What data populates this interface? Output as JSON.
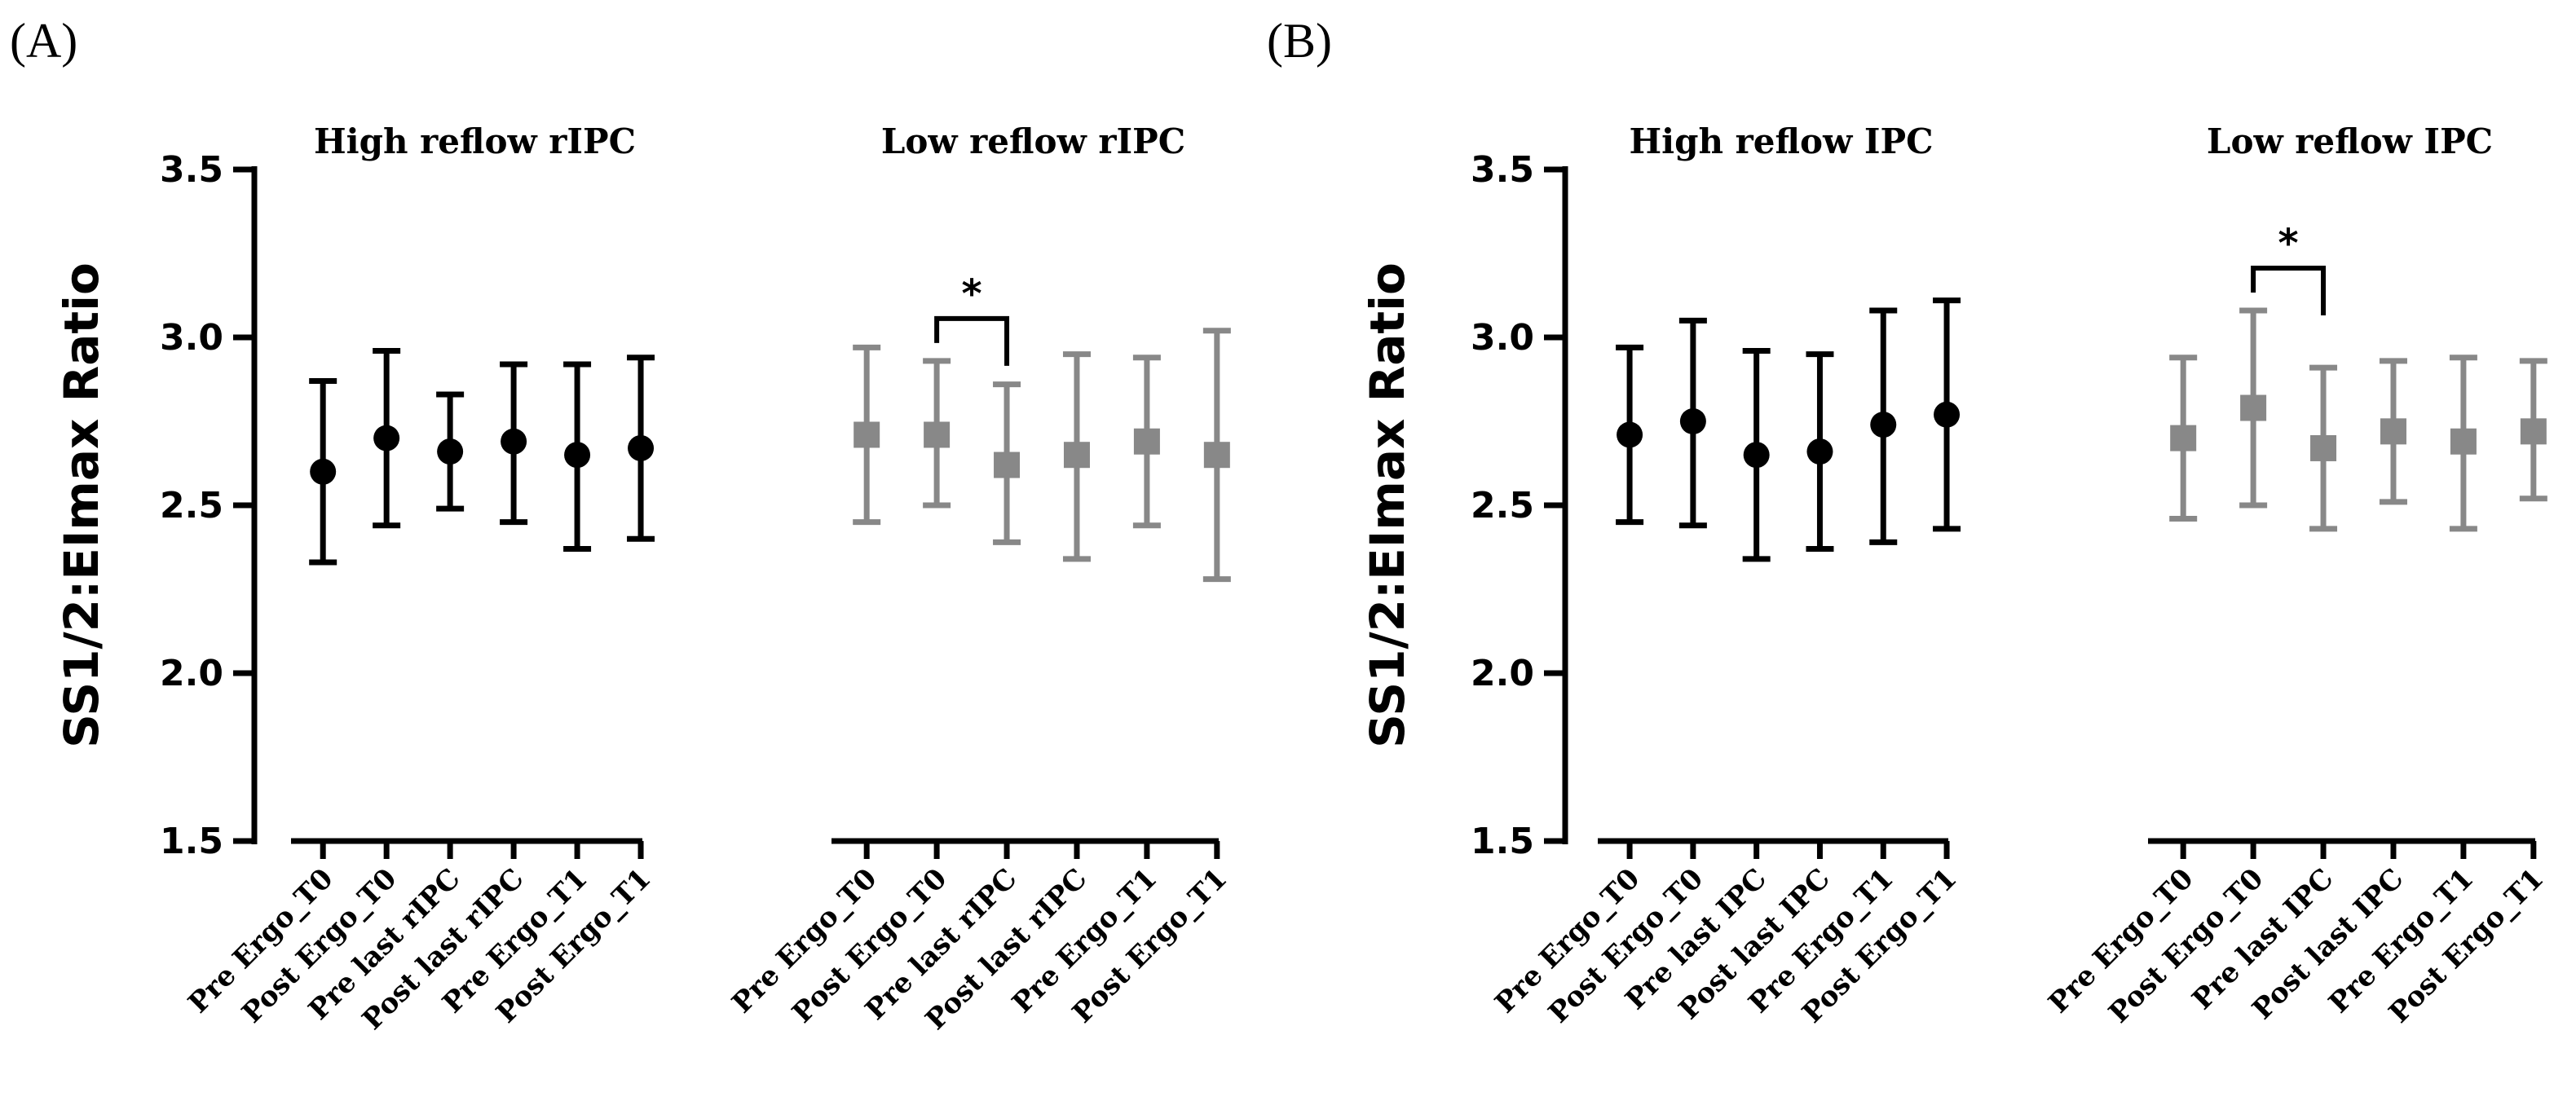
{
  "figure": {
    "colors": {
      "black": "#000000",
      "gray": "#888888"
    }
  },
  "chart_data": [
    {
      "type": "scatter",
      "panel_label": "(A)",
      "ylabel": "SS1/2:EImax Ratio",
      "ylim": [
        1.5,
        3.5
      ],
      "yticks": [
        "1.5",
        "2.0",
        "2.5",
        "3.0",
        "3.5"
      ],
      "groups": [
        {
          "title": "High reflow rIPC",
          "color": "#000000",
          "marker": "circle",
          "categories": [
            "Pre Ergo_T0",
            "Post Ergo_T0",
            "Pre last rIPC",
            "Post last rIPC",
            "Pre Ergo_T1",
            "Post Ergo_T1"
          ],
          "mean": [
            2.6,
            2.7,
            2.66,
            2.69,
            2.65,
            2.67
          ],
          "upper": [
            2.87,
            2.96,
            2.83,
            2.92,
            2.92,
            2.94
          ],
          "lower": [
            2.33,
            2.44,
            2.49,
            2.45,
            2.37,
            2.4
          ]
        },
        {
          "title": "Low reflow rIPC",
          "color": "#888888",
          "marker": "square",
          "categories": [
            "Pre Ergo_T0",
            "Post Ergo_T0",
            "Pre last rIPC",
            "Post last rIPC",
            "Pre Ergo_T1",
            "Post Ergo_T1"
          ],
          "mean": [
            2.71,
            2.71,
            2.62,
            2.65,
            2.69,
            2.65
          ],
          "upper": [
            2.97,
            2.93,
            2.86,
            2.95,
            2.94,
            3.02
          ],
          "lower": [
            2.45,
            2.5,
            2.39,
            2.34,
            2.44,
            2.28
          ]
        }
      ],
      "significance": {
        "group": 1,
        "from": 1,
        "to": 2,
        "label": "*"
      }
    },
    {
      "type": "scatter",
      "panel_label": "(B)",
      "ylabel": "SS1/2:EImax Ratio",
      "ylim": [
        1.5,
        3.5
      ],
      "yticks": [
        "1.5",
        "2.0",
        "2.5",
        "3.0",
        "3.5"
      ],
      "groups": [
        {
          "title": "High reflow IPC",
          "color": "#000000",
          "marker": "circle",
          "categories": [
            "Pre Ergo_T0",
            "Post Ergo_T0",
            "Pre last IPC",
            "Post last IPC",
            "Pre Ergo_T1",
            "Post Ergo_T1"
          ],
          "mean": [
            2.71,
            2.75,
            2.65,
            2.66,
            2.74,
            2.77
          ],
          "upper": [
            2.97,
            3.05,
            2.96,
            2.95,
            3.08,
            3.11
          ],
          "lower": [
            2.45,
            2.44,
            2.34,
            2.37,
            2.39,
            2.43
          ]
        },
        {
          "title": "Low reflow IPC",
          "color": "#888888",
          "marker": "square",
          "categories": [
            "Pre Ergo_T0",
            "Post Ergo_T0",
            "Pre last IPC",
            "Post last IPC",
            "Pre Ergo_T1",
            "Post Ergo_T1"
          ],
          "mean": [
            2.7,
            2.79,
            2.67,
            2.72,
            2.69,
            2.72
          ],
          "upper": [
            2.94,
            3.08,
            2.91,
            2.93,
            2.94,
            2.93
          ],
          "lower": [
            2.46,
            2.5,
            2.43,
            2.51,
            2.43,
            2.52
          ]
        }
      ],
      "significance": {
        "group": 1,
        "from": 1,
        "to": 2,
        "label": "*"
      }
    }
  ]
}
